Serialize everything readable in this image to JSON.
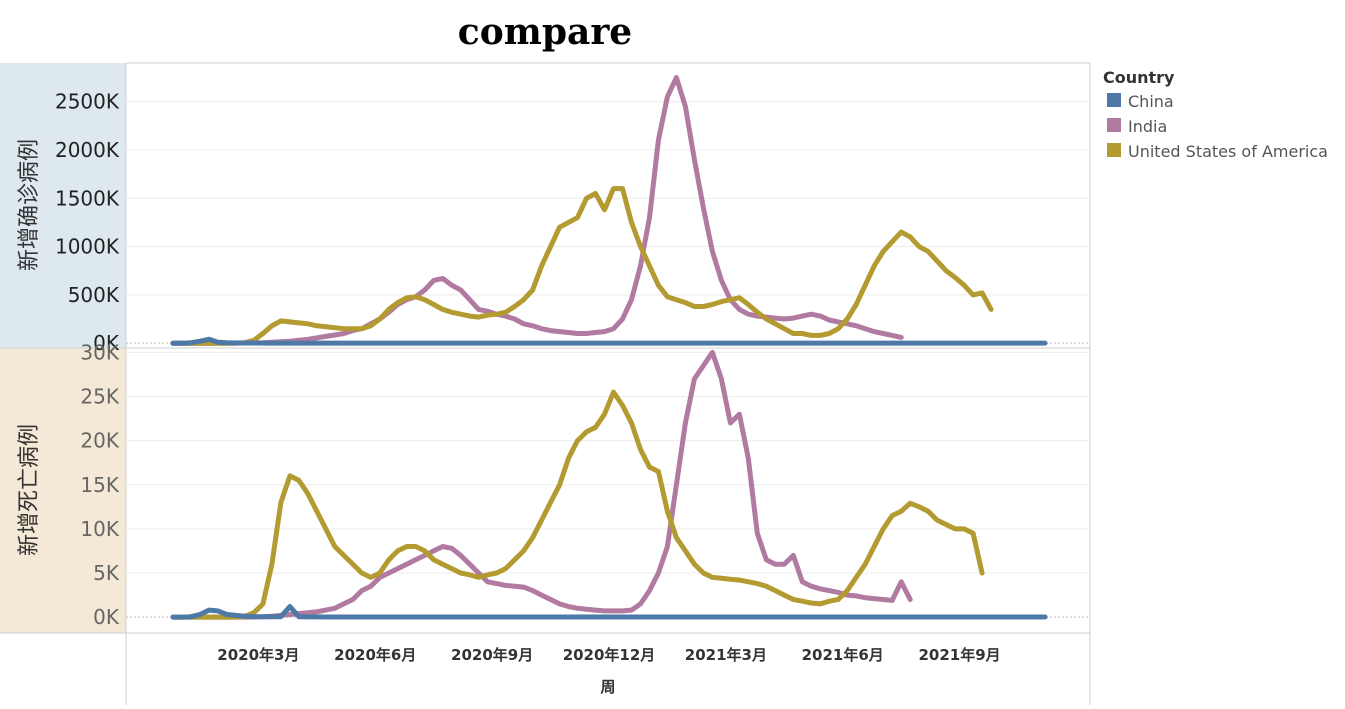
{
  "chart_data": {
    "type": "line",
    "title": "compare",
    "xlabel": "周",
    "x_ticks": [
      "2020年3月",
      "2020年6月",
      "2020年9月",
      "2020年12月",
      "2021年3月",
      "2021年6月",
      "2021年9月"
    ],
    "x_tick_weeks": [
      9.5,
      22.5,
      35.5,
      48.5,
      61.5,
      74.5,
      87.5
    ],
    "legend": {
      "title": "Country",
      "placement": "right"
    },
    "colors": {
      "China": "#4e79a7",
      "India": "#b07aa1",
      "United States of America": "#b39a31"
    },
    "panels": [
      {
        "ylabel": "新增确诊病例",
        "ylim": [
          -50,
          2900
        ],
        "yticks": [
          0,
          500,
          1000,
          1500,
          2000,
          2500
        ],
        "ytick_labels": [
          "0K",
          "500K",
          "1000K",
          "1500K",
          "2000K",
          "2500K"
        ],
        "bg": "#dde9ef",
        "series": [
          {
            "name": "China",
            "values": [
              0,
              0,
              5,
              20,
              40,
              10,
              5,
              3,
              2,
              2,
              1,
              1,
              1,
              1,
              1,
              1,
              1,
              1,
              1,
              1,
              1,
              1,
              1,
              1,
              1,
              1,
              1,
              1,
              1,
              1,
              1,
              1,
              1,
              1,
              1,
              1,
              1,
              1,
              1,
              1,
              1,
              1,
              1,
              1,
              1,
              1,
              1,
              1,
              1,
              1,
              1,
              1,
              1,
              1,
              1,
              1,
              1,
              1,
              1,
              1,
              1,
              1,
              1,
              1,
              1,
              1,
              1,
              1,
              1,
              1,
              1,
              1,
              1,
              1,
              1,
              1,
              1,
              1,
              1,
              1,
              1,
              1,
              1,
              1,
              1,
              1,
              1,
              1,
              1,
              1,
              1,
              1,
              1,
              1,
              1,
              1,
              1,
              1
            ]
          },
          {
            "name": "India",
            "values": [
              0,
              0,
              0,
              0,
              0,
              0,
              0,
              1,
              2,
              3,
              5,
              10,
              15,
              20,
              30,
              40,
              55,
              70,
              85,
              100,
              130,
              150,
              200,
              250,
              320,
              400,
              450,
              480,
              550,
              650,
              670,
              600,
              550,
              450,
              350,
              330,
              300,
              280,
              250,
              200,
              180,
              150,
              130,
              120,
              110,
              100,
              100,
              110,
              120,
              150,
              250,
              450,
              800,
              1300,
              2100,
              2550,
              2750,
              2450,
              1900,
              1400,
              950,
              650,
              450,
              350,
              300,
              280,
              270,
              260,
              250,
              260,
              280,
              300,
              280,
              240,
              220,
              200,
              180,
              150,
              120,
              100,
              80,
              60
            ]
          },
          {
            "name": "United States of America",
            "values": [
              0,
              0,
              0,
              0,
              0,
              0,
              0,
              1,
              5,
              30,
              100,
              180,
              230,
              220,
              210,
              200,
              180,
              170,
              160,
              150,
              150,
              150,
              180,
              250,
              350,
              420,
              470,
              480,
              450,
              400,
              350,
              320,
              300,
              280,
              270,
              290,
              300,
              320,
              380,
              450,
              550,
              800,
              1000,
              1200,
              1250,
              1300,
              1500,
              1550,
              1380,
              1600,
              1600,
              1250,
              1000,
              800,
              600,
              480,
              450,
              420,
              380,
              380,
              400,
              430,
              450,
              470,
              400,
              320,
              250,
              200,
              150,
              100,
              100,
              80,
              80,
              100,
              150,
              250,
              400,
              600,
              800,
              950,
              1050,
              1150,
              1100,
              1000,
              950,
              850,
              750,
              680,
              600,
              500,
              520,
              350
            ]
          }
        ]
      },
      {
        "ylabel": "新增死亡病例",
        "ylim": [
          -1800,
          30500
        ],
        "yticks": [
          0,
          5000,
          10000,
          15000,
          20000,
          25000,
          30000
        ],
        "ytick_labels": [
          "0K",
          "5K",
          "10K",
          "15K",
          "20K",
          "25K",
          "30K"
        ],
        "bg": "#f4e9d7",
        "series": [
          {
            "name": "China",
            "values": [
              0,
              0,
              50,
              300,
              800,
              700,
              300,
              200,
              100,
              50,
              50,
              50,
              50,
              1200,
              50,
              30,
              20,
              10,
              10,
              10,
              10,
              10,
              10,
              10,
              10,
              10,
              10,
              10,
              10,
              10,
              10,
              10,
              10,
              10,
              10,
              10,
              10,
              10,
              10,
              10,
              10,
              10,
              10,
              10,
              10,
              10,
              10,
              10,
              10,
              10,
              10,
              10,
              10,
              10,
              10,
              10,
              10,
              10,
              10,
              10,
              10,
              10,
              10,
              10,
              10,
              10,
              10,
              10,
              10,
              10,
              10,
              10,
              10,
              10,
              10,
              10,
              10,
              10,
              10,
              10,
              10,
              10,
              10,
              10,
              10,
              10,
              10,
              10,
              10,
              10,
              10,
              10,
              10,
              10,
              10,
              10,
              10,
              10
            ]
          },
          {
            "name": "India",
            "values": [
              0,
              0,
              0,
              0,
              0,
              0,
              0,
              0,
              0,
              10,
              50,
              100,
              200,
              300,
              400,
              500,
              600,
              800,
              1000,
              1500,
              2000,
              3000,
              3500,
              4500,
              5000,
              5500,
              6000,
              6500,
              7000,
              7500,
              8000,
              7800,
              7000,
              6000,
              5000,
              4000,
              3800,
              3600,
              3500,
              3400,
              3000,
              2500,
              2000,
              1500,
              1200,
              1000,
              900,
              800,
              700,
              700,
              700,
              800,
              1500,
              3000,
              5000,
              8000,
              15000,
              22000,
              27000,
              28500,
              30000,
              27000,
              22000,
              23000,
              18000,
              9500,
              6500,
              6000,
              6000,
              7000,
              4000,
              3500,
              3200,
              3000,
              2800,
              2500,
              2400,
              2200,
              2100,
              2000,
              1900,
              4000,
              2000
            ]
          },
          {
            "name": "United States of America",
            "values": [
              0,
              0,
              0,
              0,
              0,
              0,
              0,
              0,
              100,
              500,
              1500,
              6000,
              13000,
              16000,
              15500,
              14000,
              12000,
              10000,
              8000,
              7000,
              6000,
              5000,
              4500,
              5000,
              6500,
              7500,
              8000,
              8000,
              7500,
              6500,
              6000,
              5500,
              5000,
              4800,
              4500,
              4800,
              5000,
              5500,
              6500,
              7500,
              9000,
              11000,
              13000,
              15000,
              18000,
              20000,
              21000,
              21500,
              23000,
              25500,
              24000,
              22000,
              19000,
              17000,
              16500,
              12000,
              9000,
              7500,
              6000,
              5000,
              4500,
              4400,
              4300,
              4200,
              4000,
              3800,
              3500,
              3000,
              2500,
              2000,
              1800,
              1600,
              1500,
              1800,
              2000,
              3000,
              4500,
              6000,
              8000,
              10000,
              11500,
              12000,
              12900,
              12500,
              12000,
              11000,
              10500,
              10000,
              10000,
              9500,
              5000
            ]
          }
        ]
      }
    ]
  }
}
